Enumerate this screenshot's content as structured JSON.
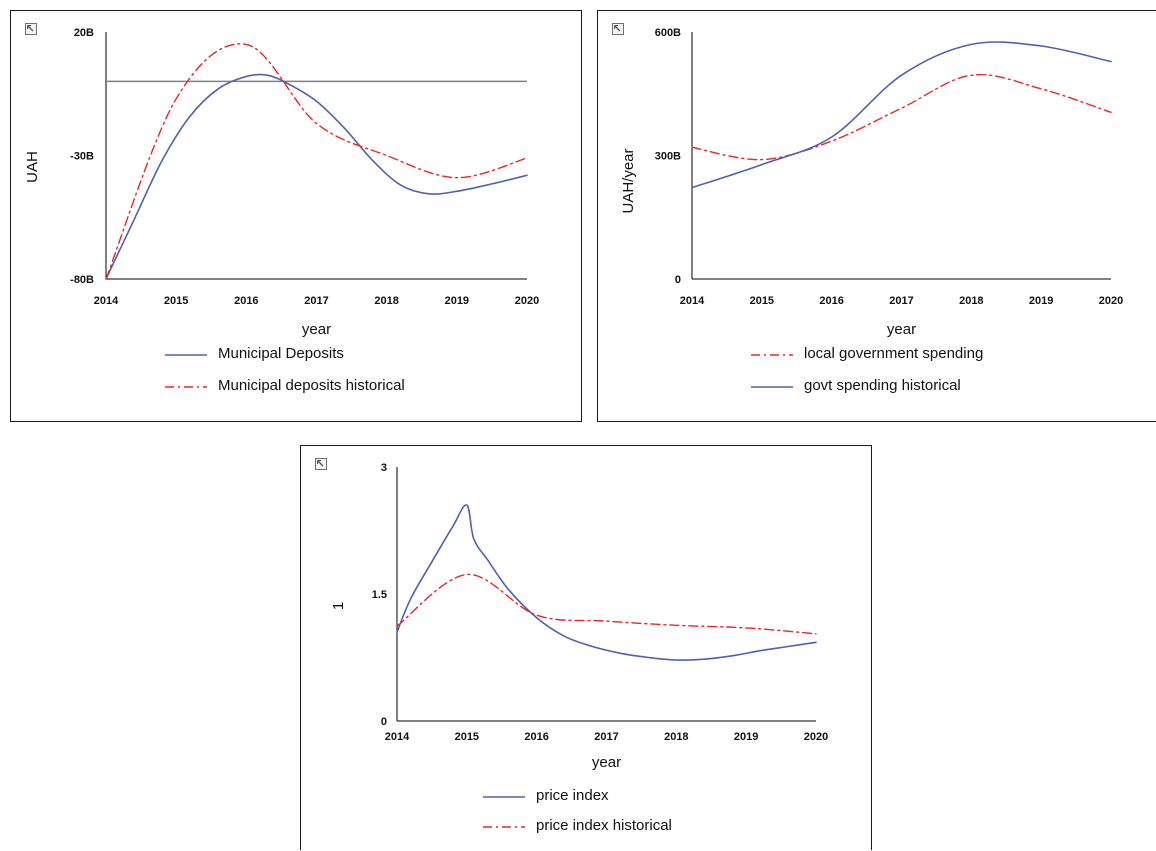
{
  "colors": {
    "model_line": "#5060b0",
    "historical_line": "#e8262b",
    "reference_line": "#808080",
    "axis": "#000000",
    "border": "#1a1a1a"
  },
  "icons": {
    "expand": "expand-arrow-icon"
  },
  "chart_data": [
    {
      "type": "line",
      "title": "",
      "xlabel": "year",
      "ylabel": "UAH",
      "xlim": [
        2014,
        2020
      ],
      "ylim": [
        -80000000000,
        20000000000
      ],
      "x_ticks": [
        "2014",
        "2015",
        "2016",
        "2017",
        "2018",
        "2019",
        "2020"
      ],
      "y_ticks": [
        {
          "value": -80000000000,
          "label": "-80B"
        },
        {
          "value": -30000000000,
          "label": "-30B"
        },
        {
          "value": 20000000000,
          "label": "20B"
        }
      ],
      "reference_line": {
        "value": 0
      },
      "legend_position": "bottom",
      "series": [
        {
          "name": "Municipal Deposits",
          "style": "solid",
          "color": "#5060b0",
          "points": [
            [
              2014,
              -80000000000.0
            ],
            [
              2014.4,
              -56000000000.0
            ],
            [
              2014.8,
              -32000000000.0
            ],
            [
              2015.2,
              -14000000000.0
            ],
            [
              2015.6,
              -3000000000.0
            ],
            [
              2016,
              2000000000.0
            ],
            [
              2016.3,
              2500000000.0
            ],
            [
              2016.6,
              -1000000000.0
            ],
            [
              2017,
              -8000000000.0
            ],
            [
              2017.4,
              -19000000000.0
            ],
            [
              2017.8,
              -32000000000.0
            ],
            [
              2018.2,
              -42000000000.0
            ],
            [
              2018.6,
              -45500000000.0
            ],
            [
              2019,
              -44500000000.0
            ],
            [
              2019.5,
              -41500000000.0
            ],
            [
              2020,
              -38000000000.0
            ]
          ]
        },
        {
          "name": "Municipal deposits historical",
          "style": "dashdot",
          "color": "#e8262b",
          "points": [
            [
              2014,
              -80000000000.0
            ],
            [
              2015,
              -7000000000.0
            ],
            [
              2016,
              15000000000.0
            ],
            [
              2017,
              -17000000000.0
            ],
            [
              2018,
              -30000000000.0
            ],
            [
              2019,
              -39000000000.0
            ],
            [
              2020,
              -31000000000.0
            ]
          ]
        }
      ]
    },
    {
      "type": "line",
      "title": "",
      "xlabel": "year",
      "ylabel": "UAH/year",
      "xlim": [
        2014,
        2020
      ],
      "ylim": [
        0,
        600000000000
      ],
      "x_ticks": [
        "2014",
        "2015",
        "2016",
        "2017",
        "2018",
        "2019",
        "2020"
      ],
      "y_ticks": [
        {
          "value": 0,
          "label": "0"
        },
        {
          "value": 300000000000,
          "label": "300B"
        },
        {
          "value": 600000000000,
          "label": "600B"
        }
      ],
      "legend_position": "bottom",
      "series": [
        {
          "name": "local government spending",
          "style": "dashdot",
          "color": "#e8262b",
          "points": [
            [
              2014,
              320000000000.0
            ],
            [
              2015,
              290000000000.0
            ],
            [
              2016,
              335000000000.0
            ],
            [
              2017,
              415000000000.0
            ],
            [
              2018,
              495000000000.0
            ],
            [
              2019,
              462000000000.0
            ],
            [
              2020,
              405000000000.0
            ]
          ]
        },
        {
          "name": "govt spending historical",
          "style": "solid",
          "color": "#5060b0",
          "points": [
            [
              2014,
              222000000000.0
            ],
            [
              2015,
              278000000000.0
            ],
            [
              2016,
              345000000000.0
            ],
            [
              2017,
              495000000000.0
            ],
            [
              2018,
              570000000000.0
            ],
            [
              2019,
              566000000000.0
            ],
            [
              2020,
              528000000000.0
            ]
          ]
        }
      ]
    },
    {
      "type": "line",
      "title": "",
      "xlabel": "year",
      "ylabel": "1",
      "xlim": [
        2014,
        2020
      ],
      "ylim": [
        0,
        3
      ],
      "x_ticks": [
        "2014",
        "2015",
        "2016",
        "2017",
        "2018",
        "2019",
        "2020"
      ],
      "y_ticks": [
        {
          "value": 0,
          "label": "0"
        },
        {
          "value": 1.5,
          "label": "1.5"
        },
        {
          "value": 3,
          "label": "3"
        }
      ],
      "legend_position": "bottom",
      "series": [
        {
          "name": "price index",
          "style": "solid",
          "color": "#5060b0",
          "points": [
            [
              2014,
              1.05
            ],
            [
              2014.2,
              1.45
            ],
            [
              2014.5,
              1.88
            ],
            [
              2014.8,
              2.3
            ],
            [
              2015,
              2.55
            ],
            [
              2015.1,
              2.15
            ],
            [
              2015.3,
              1.9
            ],
            [
              2015.6,
              1.55
            ],
            [
              2016,
              1.22
            ],
            [
              2016.4,
              1.0
            ],
            [
              2016.8,
              0.88
            ],
            [
              2017.2,
              0.8
            ],
            [
              2017.6,
              0.75
            ],
            [
              2018,
              0.72
            ],
            [
              2018.4,
              0.73
            ],
            [
              2018.8,
              0.77
            ],
            [
              2019.2,
              0.83
            ],
            [
              2019.6,
              0.88
            ],
            [
              2020,
              0.93
            ]
          ]
        },
        {
          "name": "price index historical",
          "style": "dashdot",
          "color": "#e8262b",
          "points": [
            [
              2014,
              1.12
            ],
            [
              2015,
              1.73
            ],
            [
              2016,
              1.25
            ],
            [
              2017,
              1.18
            ],
            [
              2018,
              1.13
            ],
            [
              2019,
              1.1
            ],
            [
              2020,
              1.03
            ]
          ]
        }
      ]
    }
  ]
}
